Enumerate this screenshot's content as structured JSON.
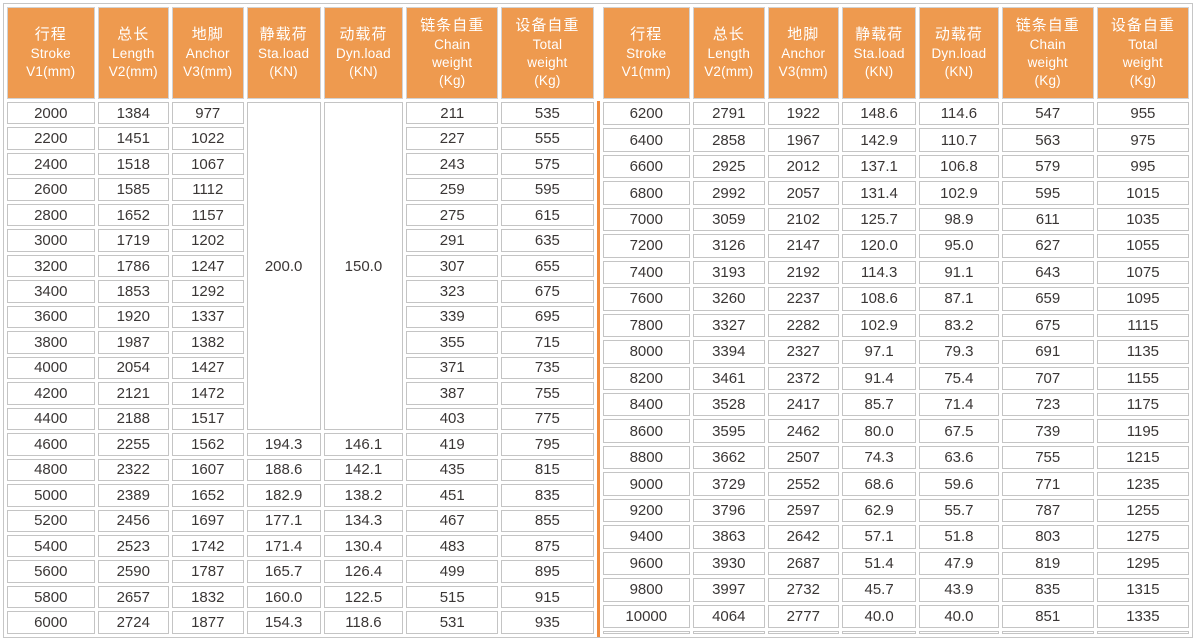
{
  "colors": {
    "header_bg": "#ee9a4f",
    "divider_orange": "#f08b3d",
    "cell_border": "#c4c4c4",
    "data_text": "#3a3635",
    "header_text": "#ffffff"
  },
  "chart_data": {
    "type": "table",
    "title": "",
    "header_columns": [
      {
        "name": "stroke",
        "lines": [
          "行程",
          "Stroke",
          "V1(mm)"
        ]
      },
      {
        "name": "length",
        "lines": [
          "总长",
          "Length",
          "V2(mm)"
        ]
      },
      {
        "name": "anchor",
        "lines": [
          "地脚",
          "Anchor",
          "V3(mm)"
        ]
      },
      {
        "name": "sta-load",
        "lines": [
          "静载荷",
          "Sta.load",
          "(KN)"
        ]
      },
      {
        "name": "dyn-load",
        "lines": [
          "动载荷",
          "Dyn.load",
          "(KN)"
        ]
      },
      {
        "name": "chain-weight",
        "lines": [
          "链条自重",
          "Chain",
          "weight",
          "(Kg)"
        ]
      },
      {
        "name": "total-weight",
        "lines": [
          "设备自重",
          "Total",
          "weight",
          "(Kg)"
        ]
      }
    ],
    "left_merged": {
      "sta_load": "200.0",
      "dyn_load": "150.0",
      "row_span": 13
    },
    "left_rows": [
      [
        "2000",
        "1384",
        "977",
        null,
        null,
        "211",
        "535"
      ],
      [
        "2200",
        "1451",
        "1022",
        null,
        null,
        "227",
        "555"
      ],
      [
        "2400",
        "1518",
        "1067",
        null,
        null,
        "243",
        "575"
      ],
      [
        "2600",
        "1585",
        "1112",
        null,
        null,
        "259",
        "595"
      ],
      [
        "2800",
        "1652",
        "1157",
        null,
        null,
        "275",
        "615"
      ],
      [
        "3000",
        "1719",
        "1202",
        null,
        null,
        "291",
        "635"
      ],
      [
        "3200",
        "1786",
        "1247",
        null,
        null,
        "307",
        "655"
      ],
      [
        "3400",
        "1853",
        "1292",
        null,
        null,
        "323",
        "675"
      ],
      [
        "3600",
        "1920",
        "1337",
        null,
        null,
        "339",
        "695"
      ],
      [
        "3800",
        "1987",
        "1382",
        null,
        null,
        "355",
        "715"
      ],
      [
        "4000",
        "2054",
        "1427",
        null,
        null,
        "371",
        "735"
      ],
      [
        "4200",
        "2121",
        "1472",
        null,
        null,
        "387",
        "755"
      ],
      [
        "4400",
        "2188",
        "1517",
        null,
        null,
        "403",
        "775"
      ],
      [
        "4600",
        "2255",
        "1562",
        "194.3",
        "146.1",
        "419",
        "795"
      ],
      [
        "4800",
        "2322",
        "1607",
        "188.6",
        "142.1",
        "435",
        "815"
      ],
      [
        "5000",
        "2389",
        "1652",
        "182.9",
        "138.2",
        "451",
        "835"
      ],
      [
        "5200",
        "2456",
        "1697",
        "177.1",
        "134.3",
        "467",
        "855"
      ],
      [
        "5400",
        "2523",
        "1742",
        "171.4",
        "130.4",
        "483",
        "875"
      ],
      [
        "5600",
        "2590",
        "1787",
        "165.7",
        "126.4",
        "499",
        "895"
      ],
      [
        "5800",
        "2657",
        "1832",
        "160.0",
        "122.5",
        "515",
        "915"
      ],
      [
        "6000",
        "2724",
        "1877",
        "154.3",
        "118.6",
        "531",
        "935"
      ]
    ],
    "right_rows": [
      [
        "6200",
        "2791",
        "1922",
        "148.6",
        "114.6",
        "547",
        "955"
      ],
      [
        "6400",
        "2858",
        "1967",
        "142.9",
        "110.7",
        "563",
        "975"
      ],
      [
        "6600",
        "2925",
        "2012",
        "137.1",
        "106.8",
        "579",
        "995"
      ],
      [
        "6800",
        "2992",
        "2057",
        "131.4",
        "102.9",
        "595",
        "1015"
      ],
      [
        "7000",
        "3059",
        "2102",
        "125.7",
        "98.9",
        "611",
        "1035"
      ],
      [
        "7200",
        "3126",
        "2147",
        "120.0",
        "95.0",
        "627",
        "1055"
      ],
      [
        "7400",
        "3193",
        "2192",
        "114.3",
        "91.1",
        "643",
        "1075"
      ],
      [
        "7600",
        "3260",
        "2237",
        "108.6",
        "87.1",
        "659",
        "1095"
      ],
      [
        "7800",
        "3327",
        "2282",
        "102.9",
        "83.2",
        "675",
        "1115"
      ],
      [
        "8000",
        "3394",
        "2327",
        "97.1",
        "79.3",
        "691",
        "1135"
      ],
      [
        "8200",
        "3461",
        "2372",
        "91.4",
        "75.4",
        "707",
        "1155"
      ],
      [
        "8400",
        "3528",
        "2417",
        "85.7",
        "71.4",
        "723",
        "1175"
      ],
      [
        "8600",
        "3595",
        "2462",
        "80.0",
        "67.5",
        "739",
        "1195"
      ],
      [
        "8800",
        "3662",
        "2507",
        "74.3",
        "63.6",
        "755",
        "1215"
      ],
      [
        "9000",
        "3729",
        "2552",
        "68.6",
        "59.6",
        "771",
        "1235"
      ],
      [
        "9200",
        "3796",
        "2597",
        "62.9",
        "55.7",
        "787",
        "1255"
      ],
      [
        "9400",
        "3863",
        "2642",
        "57.1",
        "51.8",
        "803",
        "1275"
      ],
      [
        "9600",
        "3930",
        "2687",
        "51.4",
        "47.9",
        "819",
        "1295"
      ],
      [
        "9800",
        "3997",
        "2732",
        "45.7",
        "43.9",
        "835",
        "1315"
      ],
      [
        "10000",
        "4064",
        "2777",
        "40.0",
        "40.0",
        "851",
        "1335"
      ],
      [
        "",
        "",
        "",
        "",
        "",
        "",
        ""
      ]
    ]
  }
}
